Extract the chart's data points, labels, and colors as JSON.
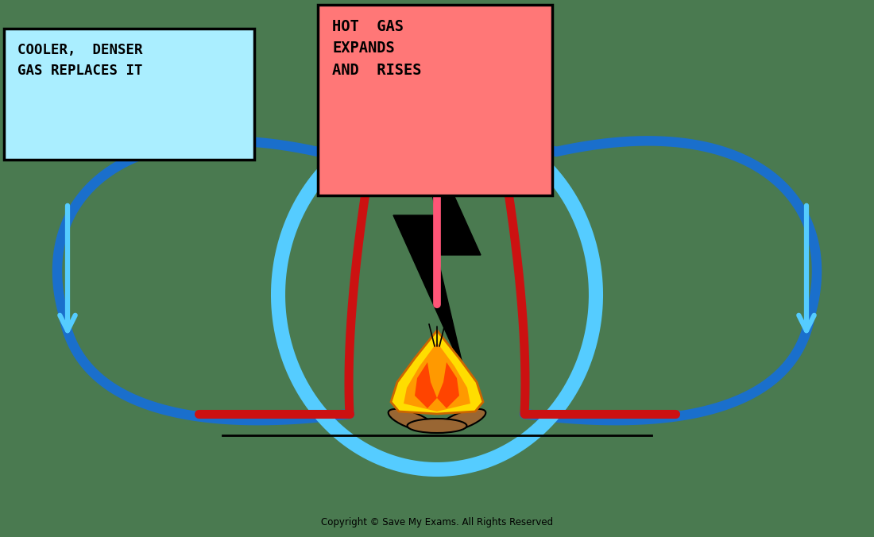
{
  "background_color": "#4a7a50",
  "copyright_text": "Copyright © Save My Exams. All Rights Reserved",
  "box1_text": "COOLER,  DENSER\nGAS REPLACES IT",
  "box1_color": "#aaeeff",
  "box1_border": "#000000",
  "box2_text": "HOT  GAS\nEXPANDS\nAND  RISES",
  "box2_color": "#ff7777",
  "box2_border": "#000000",
  "blue_dark": "#1a6fcc",
  "blue_light": "#55ccff",
  "red_color": "#cc1111",
  "pink_color": "#ff5577",
  "flame_yellow": "#ffdd00",
  "flame_orange": "#ff9900",
  "flame_red": "#ff4400",
  "log_color": "#996633",
  "black": "#000000"
}
